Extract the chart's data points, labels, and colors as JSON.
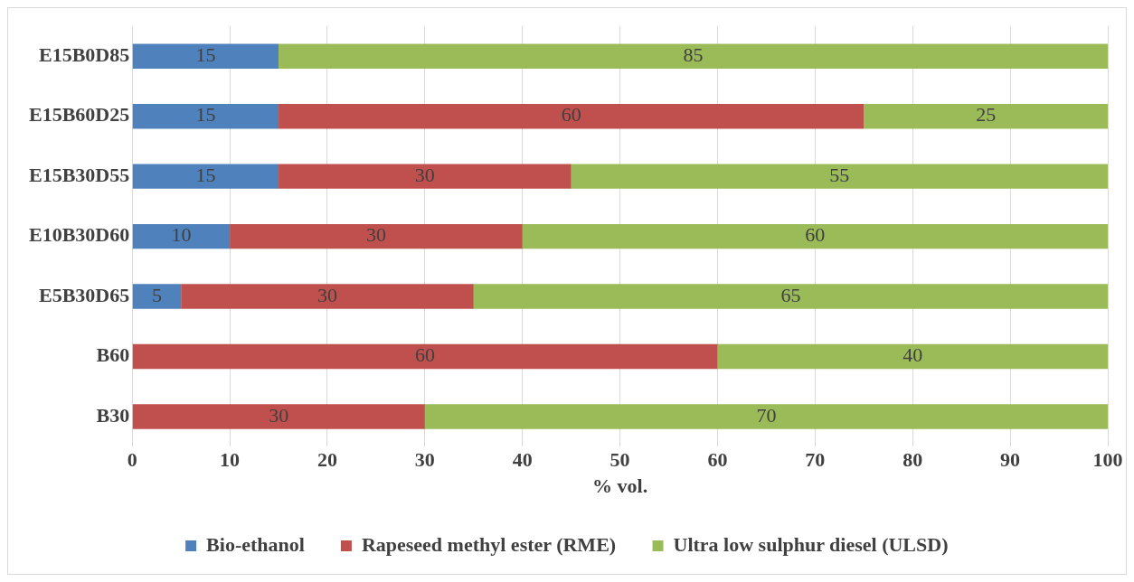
{
  "chart_data": {
    "type": "bar",
    "orientation": "horizontal",
    "stacked": true,
    "xlabel": "% vol.",
    "categories": [
      "E15B0D85",
      "E15B60D25",
      "E15B30D55",
      "E10B30D60",
      "E5B30D65",
      "B60",
      "B30"
    ],
    "series": [
      {
        "name": "Bio-ethanol",
        "color": "#4f81bd",
        "values": [
          15,
          15,
          15,
          10,
          5,
          null,
          null
        ]
      },
      {
        "name": "Rapeseed methyl ester (RME)",
        "color": "#c0504d",
        "values": [
          null,
          60,
          30,
          30,
          30,
          60,
          30
        ]
      },
      {
        "name": "Ultra low sulphur diesel (ULSD)",
        "color": "#9bbb59",
        "values": [
          85,
          25,
          55,
          60,
          65,
          40,
          70
        ]
      }
    ],
    "xlim": [
      0,
      100
    ],
    "xticks": [
      0,
      10,
      20,
      30,
      40,
      50,
      60,
      70,
      80,
      90,
      100
    ],
    "grid": "x",
    "legend": "bottom",
    "data_labels": true
  }
}
